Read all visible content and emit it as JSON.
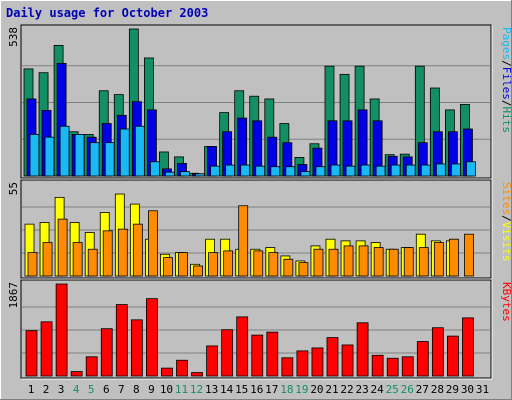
{
  "chart_data": {
    "type": "bar",
    "title": "Daily usage for October 2003",
    "colors": {
      "hits": "#138f63",
      "files": "#0000e6",
      "pages": "#19b9f5",
      "visits": "#ffff00",
      "sites": "#ff8c00",
      "kbytes": "#ff0000",
      "weekend_day_label": "#138f63",
      "weekday_label": "#000000",
      "title": "#0000b8"
    },
    "days": [
      "1",
      "2",
      "3",
      "4",
      "5",
      "6",
      "7",
      "8",
      "9",
      "10",
      "11",
      "12",
      "13",
      "14",
      "15",
      "16",
      "17",
      "18",
      "19",
      "20",
      "21",
      "22",
      "23",
      "24",
      "25",
      "26",
      "27",
      "28",
      "29",
      "30",
      "31"
    ],
    "weekend_days": [
      "4",
      "5",
      "11",
      "12",
      "18",
      "19",
      "25",
      "26"
    ],
    "panels": [
      {
        "name": "hits-files-pages",
        "max_label": "538",
        "ylim": [
          0,
          538
        ],
        "axis_label_parts": [
          "Pages",
          "/",
          "Files",
          "/",
          "Hits"
        ],
        "series": [
          {
            "name": "Hits",
            "values": [
              392,
              378,
              478,
              162,
              152,
              312,
              298,
              538,
              432,
              88,
              70,
              10,
              108,
              232,
              312,
              292,
              282,
              192,
              68,
              118,
              402,
              372,
              402,
              282,
              78,
              80,
              402,
              322,
              242,
              262,
              0
            ]
          },
          {
            "name": "Files",
            "values": [
              282,
              240,
              412,
              152,
              142,
              192,
              222,
              272,
              242,
              26,
              46,
              8,
              108,
              162,
              212,
              202,
              142,
              122,
              42,
              102,
              202,
              202,
              242,
              202,
              72,
              70,
              122,
              162,
              162,
              172,
              0
            ]
          },
          {
            "name": "Pages",
            "values": [
              152,
              142,
              182,
              152,
              122,
              122,
              172,
              182,
              52,
              14,
              16,
              8,
              36,
              40,
              40,
              36,
              34,
              34,
              16,
              34,
              40,
              36,
              40,
              36,
              40,
              40,
              40,
              44,
              44,
              52,
              0
            ]
          }
        ]
      },
      {
        "name": "visits-sites",
        "max_label": "55",
        "ylim": [
          0,
          55
        ],
        "axis_label_parts": [
          "Sites",
          "/",
          "Visits"
        ],
        "series": [
          {
            "name": "Visits",
            "values": [
              31,
              32,
              47,
              32,
              26,
              38,
              49,
              43,
              22,
              13,
              14,
              7,
              22,
              22,
              16,
              16,
              17,
              12,
              9,
              18,
              22,
              21,
              21,
              20,
              16,
              17,
              25,
              21,
              21,
              0,
              0
            ]
          },
          {
            "name": "Sites",
            "values": [
              14,
              20,
              34,
              20,
              16,
              27,
              28,
              31,
              39,
              11,
              14,
              6,
              14,
              15,
              42,
              15,
              14,
              10,
              8,
              16,
              16,
              18,
              18,
              17,
              16,
              17,
              17,
              20,
              22,
              25,
              0
            ]
          }
        ]
      },
      {
        "name": "kbytes",
        "max_label": "1867",
        "ylim": [
          0,
          1867
        ],
        "axis_label_parts": [
          "KBytes"
        ],
        "series": [
          {
            "name": "KBytes",
            "values": [
              920,
              1100,
              1867,
              90,
              390,
              960,
              1450,
              1140,
              1570,
              160,
              320,
              70,
              610,
              940,
              1200,
              830,
              890,
              370,
              510,
              570,
              780,
              630,
              1080,
              420,
              360,
              390,
              700,
              980,
              810,
              1180,
              0
            ]
          }
        ]
      }
    ]
  }
}
